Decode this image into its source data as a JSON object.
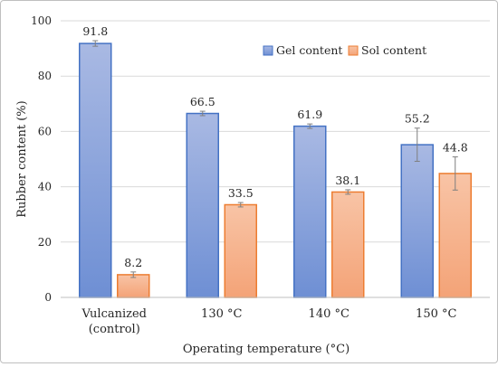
{
  "chart_data": {
    "type": "bar",
    "title": "",
    "xlabel": "Operating temperature (°C)",
    "ylabel": "Rubber content (%)",
    "ylim": [
      0,
      100
    ],
    "yticks": [
      0,
      20,
      40,
      60,
      80,
      100
    ],
    "grid": true,
    "legend_position": "top-right",
    "categories": [
      [
        "Vulcanized",
        "(control)"
      ],
      [
        "130 °C"
      ],
      [
        "140 °C"
      ],
      [
        "150 °C"
      ]
    ],
    "series": [
      {
        "name": "Gel content",
        "values": [
          91.8,
          66.5,
          61.9,
          55.2
        ],
        "labels": [
          "91.8",
          "66.5",
          "61.9",
          "55.2"
        ],
        "errors": [
          1.0,
          0.8,
          0.8,
          6.0
        ],
        "color": "#4472c4",
        "fill_top": "#a9b9e3",
        "fill_bottom": "#6e8fd4"
      },
      {
        "name": "Sol content",
        "values": [
          8.2,
          33.5,
          38.1,
          44.8
        ],
        "labels": [
          "8.2",
          "33.5",
          "38.1",
          "44.8"
        ],
        "errors": [
          1.0,
          0.8,
          0.8,
          6.0
        ],
        "color": "#ed7d31",
        "fill_top": "#f8c4a6",
        "fill_bottom": "#f4a377"
      }
    ]
  }
}
